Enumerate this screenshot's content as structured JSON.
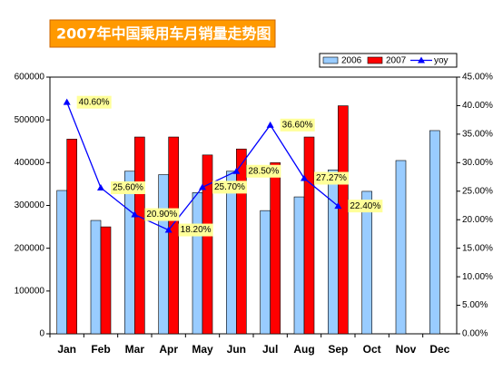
{
  "chart_data": {
    "type": "bar-line",
    "title": "2007年中国乘用车月销量走势图",
    "categories": [
      "Jan",
      "Feb",
      "Mar",
      "Apr",
      "May",
      "Jun",
      "Jul",
      "Aug",
      "Sep",
      "Oct",
      "Nov",
      "Dec"
    ],
    "series": [
      {
        "name": "2006",
        "type": "bar",
        "color": "#99ccff",
        "values": [
          335000,
          265000,
          380000,
          372000,
          330000,
          380000,
          288000,
          320000,
          383000,
          333000,
          405000,
          475000
        ]
      },
      {
        "name": "2007",
        "type": "bar",
        "color": "#ff0000",
        "values": [
          455000,
          250000,
          460000,
          460000,
          418000,
          432000,
          400000,
          460000,
          533000,
          null,
          null,
          null
        ]
      },
      {
        "name": "yoy",
        "type": "line",
        "axis": "y2",
        "color": "#0000ff",
        "values": [
          40.6,
          25.6,
          20.9,
          18.2,
          25.7,
          28.5,
          36.6,
          27.27,
          22.4,
          null,
          null,
          null
        ],
        "value_labels": [
          "40.60%",
          "25.60%",
          "20.90%",
          "18.20%",
          "25.70%",
          "28.50%",
          "36.60%",
          "27.27%",
          "22.40%",
          null,
          null,
          null
        ]
      }
    ],
    "ylim": [
      0,
      600000
    ],
    "yticks": [
      0,
      100000,
      200000,
      300000,
      400000,
      500000,
      600000
    ],
    "y2lim": [
      0,
      45
    ],
    "y2ticks": [
      {
        "value": 0,
        "label": "0.00%"
      },
      {
        "value": 5,
        "label": "5.00%"
      },
      {
        "value": 10,
        "label": "10.00%"
      },
      {
        "value": 15,
        "label": "15.00%"
      },
      {
        "value": 20,
        "label": "20.00%"
      },
      {
        "value": 25,
        "label": "25.00%"
      },
      {
        "value": 30,
        "label": "30.00%"
      },
      {
        "value": 35,
        "label": "35.00%"
      },
      {
        "value": 40,
        "label": "40.00%"
      },
      {
        "value": 45,
        "label": "45.00%"
      }
    ],
    "legend": "top-right",
    "grid": false
  }
}
